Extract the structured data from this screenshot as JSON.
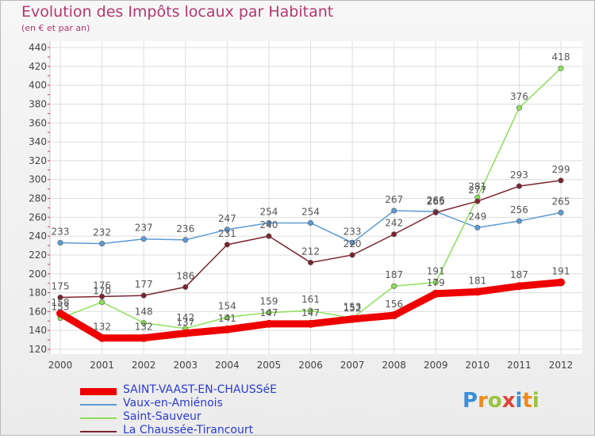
{
  "header": {
    "title": "Evolution des Impôts locaux par Habitant",
    "subtitle": "(en € et par an)"
  },
  "logo": {
    "letters": [
      {
        "char": "P",
        "color": "#3a8fd8"
      },
      {
        "char": "r",
        "color": "#f08a1c"
      },
      {
        "char": "o",
        "color": "#9ac43c"
      },
      {
        "char": "x",
        "color": "#e0433a"
      },
      {
        "char": "i",
        "color": "#3a8fd8"
      },
      {
        "char": "t",
        "color": "#f08a1c"
      },
      {
        "char": "i",
        "color": "#9ac43c"
      }
    ]
  },
  "chart_data": {
    "type": "line",
    "title": "Evolution des Impôts locaux par Habitant",
    "subtitle": "(en € et par an)",
    "x": [
      "2000",
      "2001",
      "2002",
      "2003",
      "2004",
      "2005",
      "2006",
      "2007",
      "2008",
      "2009",
      "2010",
      "2011",
      "2012"
    ],
    "ylim": [
      120,
      440
    ],
    "yticks": [
      120,
      140,
      160,
      180,
      200,
      220,
      240,
      260,
      280,
      300,
      320,
      340,
      360,
      380,
      400,
      420,
      440
    ],
    "grid": true,
    "legend_position": "bottom-left",
    "series": [
      {
        "name": "SAINT-VAAST-EN-CHAUSSéE",
        "color": "#ee0000",
        "emphasis": true,
        "values": [
          158,
          132,
          132,
          137,
          141,
          147,
          147,
          152,
          156,
          179,
          181,
          187,
          191
        ]
      },
      {
        "name": "Vaux-en-Amiénois",
        "color": "#5b9bd5",
        "emphasis": false,
        "values": [
          233,
          232,
          237,
          236,
          247,
          254,
          254,
          233,
          267,
          266,
          249,
          256,
          265
        ]
      },
      {
        "name": "Saint-Sauveur",
        "color": "#8de05a",
        "emphasis": false,
        "values": [
          153,
          170,
          148,
          142,
          154,
          159,
          161,
          153,
          187,
          191,
          281,
          376,
          418
        ]
      },
      {
        "name": "La Chaussée-Tirancourt",
        "color": "#7a2430",
        "emphasis": false,
        "values": [
          175,
          176,
          177,
          186,
          231,
          240,
          212,
          220,
          242,
          265,
          277,
          293,
          299
        ]
      }
    ]
  }
}
